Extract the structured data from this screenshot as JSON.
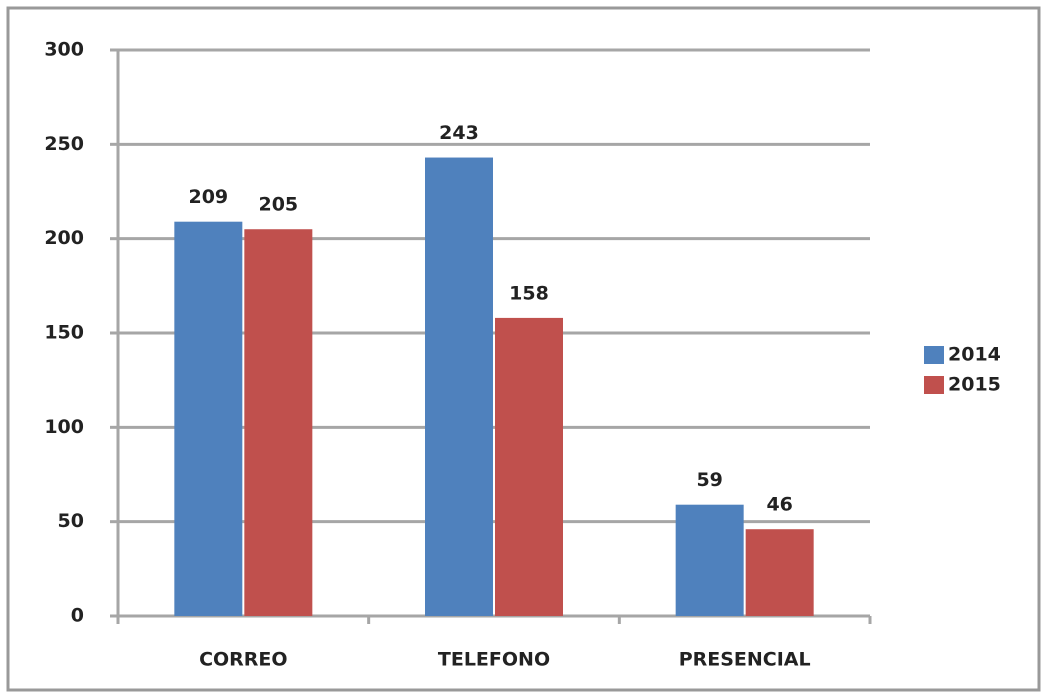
{
  "chart_data": {
    "type": "bar",
    "categories": [
      "CORREO",
      "TELEFONO",
      "PRESENCIAL"
    ],
    "series": [
      {
        "name": "2014",
        "color": "#4f81bd",
        "values": [
          209,
          243,
          59
        ]
      },
      {
        "name": "2015",
        "color": "#c0504d",
        "values": [
          205,
          158,
          46
        ]
      }
    ],
    "ylim": [
      0,
      300
    ],
    "yticks": [
      0,
      50,
      100,
      150,
      200,
      250,
      300
    ],
    "grid": true,
    "legend": "right",
    "data_labels": true
  }
}
